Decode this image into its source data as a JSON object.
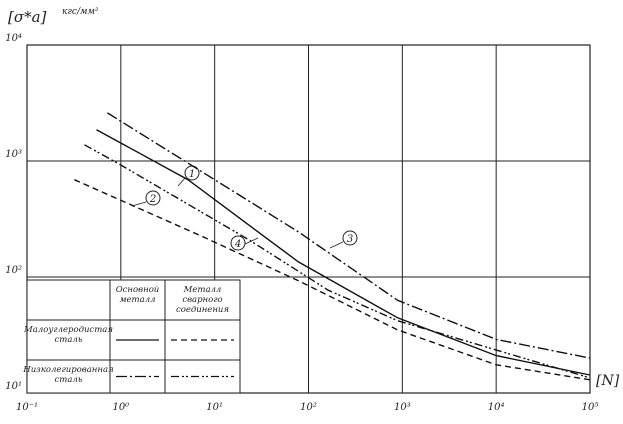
{
  "chart_data": {
    "type": "line",
    "x_log": true,
    "y_log": true,
    "grid": true,
    "y_label": "[σ*a]",
    "y_unit": "кгс/мм²",
    "x_label": "[N]",
    "xlim": [
      0.1,
      100000
    ],
    "ylim": [
      10,
      10000
    ],
    "xticks": [
      {
        "value": 0.1,
        "label": "10⁻¹"
      },
      {
        "value": 1,
        "label": "10⁰"
      },
      {
        "value": 10,
        "label": "10¹"
      },
      {
        "value": 100,
        "label": "10²"
      },
      {
        "value": 1000,
        "label": "10³"
      },
      {
        "value": 10000,
        "label": "10⁴"
      },
      {
        "value": 100000,
        "label": "10⁵"
      }
    ],
    "yticks": [
      {
        "value": 10,
        "label": "10¹"
      },
      {
        "value": 100,
        "label": "10²"
      },
      {
        "value": 1000,
        "label": "10³"
      },
      {
        "value": 10000,
        "label": "10⁴"
      }
    ],
    "series": [
      {
        "name": "1",
        "color": "#111",
        "style": "solid",
        "x": [
          0.55,
          5.2,
          78,
          890,
          10000,
          100000
        ],
        "values": [
          1860,
          690,
          135,
          44.5,
          21,
          14.3
        ]
      },
      {
        "name": "2",
        "color": "#111",
        "style": "dashed",
        "x": [
          0.32,
          6.8,
          78,
          890,
          10000,
          100000
        ],
        "values": [
          690,
          230,
          93,
          35,
          17.5,
          13
        ]
      },
      {
        "name": "3",
        "color": "#111",
        "style": "dashdot",
        "x": [
          0.72,
          78,
          890,
          10000,
          100000
        ],
        "values": [
          2600,
          245,
          63,
          29,
          20
        ]
      },
      {
        "name": "4",
        "color": "#111",
        "style": "dashdotdot",
        "x": [
          0.41,
          0.96,
          23,
          162,
          890,
          100000
        ],
        "values": [
          1380,
          940,
          210,
          77,
          42,
          13.5
        ]
      }
    ],
    "legend_table": {
      "headers": [
        "Основной металл",
        "Металл сварного соединения"
      ],
      "rows": [
        {
          "label": "Малоуглеродистая сталь",
          "styles": [
            "solid",
            "dashed"
          ]
        },
        {
          "label": "Низколегированная сталь",
          "styles": [
            "dashdot",
            "dashdotdot"
          ]
        }
      ]
    }
  }
}
